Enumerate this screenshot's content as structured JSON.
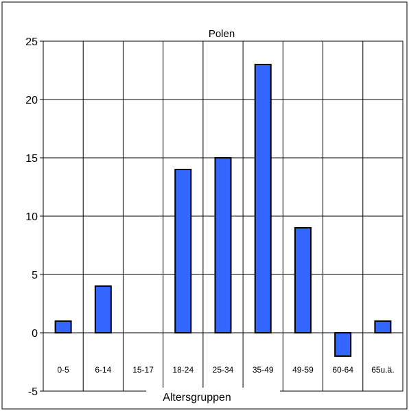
{
  "chart_data": {
    "type": "bar",
    "title": "Polen",
    "xlabel": "Altersgruppen",
    "ylabel": "",
    "categories": [
      "0-5",
      "6-14",
      "15-17",
      "18-24",
      "25-34",
      "35-49",
      "49-59",
      "60-64",
      "65u.ä."
    ],
    "values": [
      1,
      4,
      0,
      14,
      15,
      23,
      9,
      -2,
      1
    ],
    "ylim": [
      -5,
      25
    ],
    "yticks": [
      -5,
      0,
      5,
      10,
      15,
      20,
      25
    ],
    "grid": true,
    "legend": "none",
    "bar_color": "#3366ff",
    "bar_edge_color": "#000000",
    "grid_color": "#000000"
  }
}
